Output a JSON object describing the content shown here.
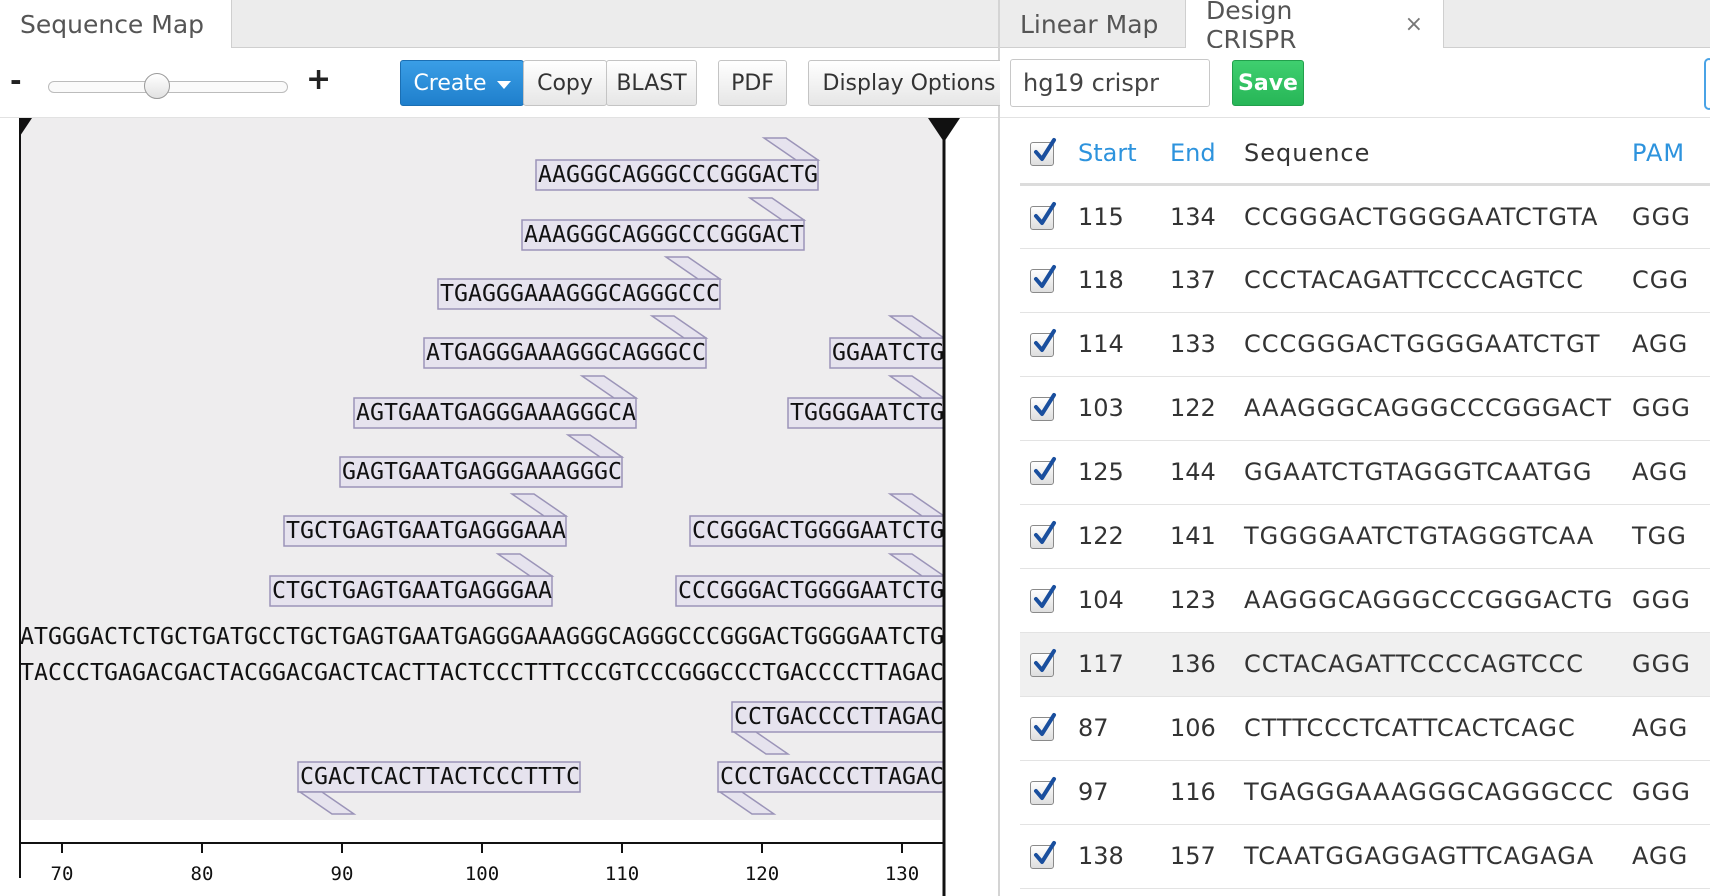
{
  "left_tabs": [
    {
      "label": "Sequence Map"
    }
  ],
  "right_tabs": [
    {
      "label": "Linear Map"
    },
    {
      "label": "Design CRISPR"
    }
  ],
  "toolbar": {
    "zoom_minus": "-",
    "zoom_plus": "+",
    "zoom_level": 0.45,
    "create_label": "Create",
    "copy_label": "Copy",
    "blast_label": "BLAST",
    "pdf_label": "PDF",
    "display_options_label": "Display Options"
  },
  "crispr": {
    "name_value": "hg19 crispr",
    "save_label": "Save",
    "close_glyph": "×"
  },
  "table": {
    "headers": {
      "start": "Start",
      "end": "End",
      "sequence": "Sequence",
      "pam": "PAM"
    },
    "rows": [
      {
        "start": "115",
        "end": "134",
        "sequence": "CCGGGACTGGGGAATCTGTA",
        "pam": "GGG",
        "checked": true
      },
      {
        "start": "118",
        "end": "137",
        "sequence": "CCCTACAGATTCCCCAGTCC",
        "pam": "CGG",
        "checked": true
      },
      {
        "start": "114",
        "end": "133",
        "sequence": "CCCGGGACTGGGGAATCTGT",
        "pam": "AGG",
        "checked": true
      },
      {
        "start": "103",
        "end": "122",
        "sequence": "AAAGGGCAGGGCCCGGGACT",
        "pam": "GGG",
        "checked": true
      },
      {
        "start": "125",
        "end": "144",
        "sequence": "GGAATCTGTAGGGTCAATGG",
        "pam": "AGG",
        "checked": true
      },
      {
        "start": "122",
        "end": "141",
        "sequence": "TGGGGAATCTGTAGGGTCAA",
        "pam": "TGG",
        "checked": true
      },
      {
        "start": "104",
        "end": "123",
        "sequence": "AAGGGCAGGGCCCGGGACTG",
        "pam": "GGG",
        "checked": true
      },
      {
        "start": "117",
        "end": "136",
        "sequence": "CCTACAGATTCCCCAGTCCC",
        "pam": "GGG",
        "checked": true,
        "highlight": true
      },
      {
        "start": "87",
        "end": "106",
        "sequence": "CTTTCCCTCATTCACTCAGC",
        "pam": "AGG",
        "checked": true
      },
      {
        "start": "97",
        "end": "116",
        "sequence": "TGAGGGAAAGGGCAGGGCCC",
        "pam": "GGG",
        "checked": true
      },
      {
        "start": "138",
        "end": "157",
        "sequence": "TCAATGGAGGAGTTCAGAGA",
        "pam": "AGG",
        "checked": true
      }
    ]
  },
  "sequence_map": {
    "forward_strand": "ATGGGACTCTGCTGATGCCTGCTGAGTGAATGAGGGAAAGGGCAGGGCCCGGGACTGGGGAATCTG",
    "reverse_strand": "TACCCTGAGACGACTACGGACGACTCACTTACTCCCTTTCCCGTCCCGGGCCCTGACCCCTTAGAC",
    "guides_forward": [
      {
        "text": "AAGGGCAGGGCCCGGGACTG",
        "row": 0,
        "start_index": 37
      },
      {
        "text": "AAAGGGCAGGGCCCGGGACT",
        "row": 1,
        "start_index": 36
      },
      {
        "text": "TGAGGGAAAGGGCAGGGCCC",
        "row": 2,
        "start_index": 30
      },
      {
        "text": "ATGAGGGAAAGGGCAGGGCC",
        "row": 3,
        "start_index": 29
      },
      {
        "text": "GGAATCTG",
        "row": 3,
        "start_index": 58
      },
      {
        "text": "AGTGAATGAGGGAAAGGGCA",
        "row": 4,
        "start_index": 24
      },
      {
        "text": "TGGGGAATCTG",
        "row": 4,
        "start_index": 55
      },
      {
        "text": "GAGTGAATGAGGGAAAGGGC",
        "row": 5,
        "start_index": 23
      },
      {
        "text": "TGCTGAGTGAATGAGGGAAA",
        "row": 6,
        "start_index": 19
      },
      {
        "text": "CCGGGACTGGGGAATCTG",
        "row": 6,
        "start_index": 48
      },
      {
        "text": "CTGCTGAGTGAATGAGGGAA",
        "row": 7,
        "start_index": 18
      },
      {
        "text": "CCCGGGACTGGGGAATCTG",
        "row": 7,
        "start_index": 47
      }
    ],
    "guides_reverse": [
      {
        "text": "CCTGACCCCTTAGAC",
        "row": 0,
        "start_index": 51
      },
      {
        "text": "CGACTCACTTACTCCCTTTC",
        "row": 1,
        "start_index": 20
      },
      {
        "text": "CCCTGACCCCTTAGAC",
        "row": 1,
        "start_index": 50
      }
    ],
    "ruler_ticks": [
      "70",
      "80",
      "90",
      "100",
      "110",
      "120",
      "130"
    ],
    "ruler_first_index": 3
  },
  "colors": {
    "accent": "#2d93dd",
    "save_green": "#2fbf5f",
    "map_background": "#eeedee",
    "guide_fill": "#e6e3ee",
    "guide_stroke": "#9b94b8"
  },
  "icons": {
    "checkbox_checked": "check-icon",
    "caret": "caret-down-icon",
    "close": "close-icon"
  }
}
